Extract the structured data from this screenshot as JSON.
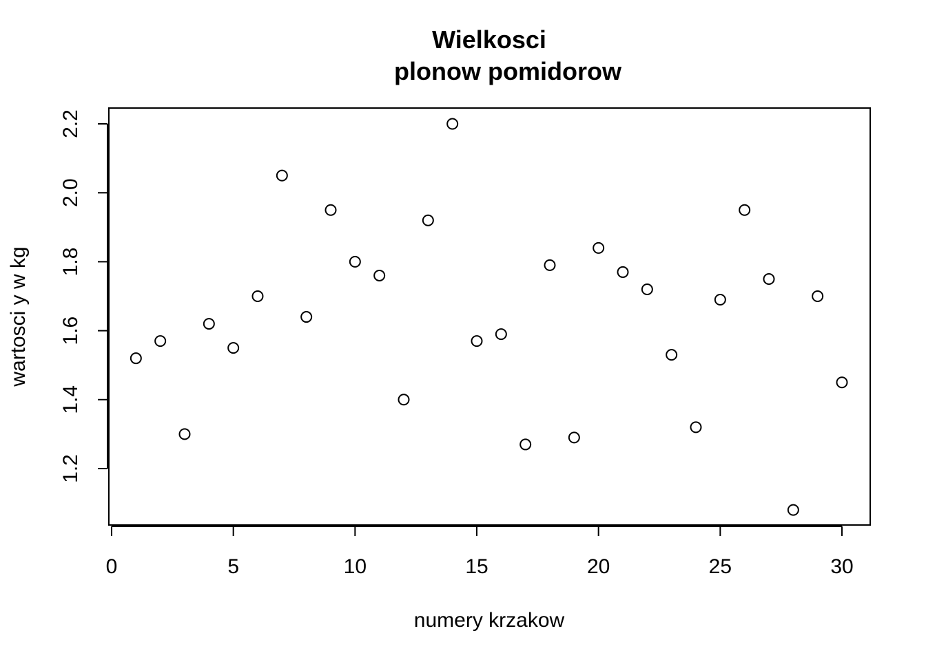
{
  "chart_data": {
    "type": "scatter",
    "title_lines": [
      "Wielkosci",
      "plonow pomidorow"
    ],
    "xlabel": "numery krzakow",
    "ylabel": "wartosci y w kg",
    "x_ticks": [
      "0",
      "5",
      "10",
      "15",
      "20",
      "25",
      "30"
    ],
    "y_ticks": [
      "1.2",
      "1.4",
      "1.6",
      "1.8",
      "2.0",
      "2.2"
    ],
    "xlim": [
      0,
      30
    ],
    "ylim": [
      1.08,
      2.2
    ],
    "grid": false,
    "marker": "open-circle",
    "colors": {
      "ink": "#000000",
      "background": "#ffffff"
    },
    "x": [
      1,
      2,
      3,
      4,
      5,
      6,
      7,
      8,
      9,
      10,
      11,
      12,
      13,
      14,
      15,
      16,
      17,
      18,
      19,
      20,
      21,
      22,
      23,
      24,
      25,
      26,
      27,
      28,
      29,
      30
    ],
    "y": [
      1.52,
      1.57,
      1.3,
      1.62,
      1.55,
      1.7,
      2.05,
      1.64,
      1.95,
      1.8,
      1.76,
      1.4,
      1.92,
      2.2,
      1.57,
      1.59,
      1.27,
      1.79,
      1.29,
      1.84,
      1.77,
      1.72,
      1.53,
      1.32,
      1.69,
      1.95,
      1.75,
      1.08,
      1.7,
      1.45
    ]
  }
}
